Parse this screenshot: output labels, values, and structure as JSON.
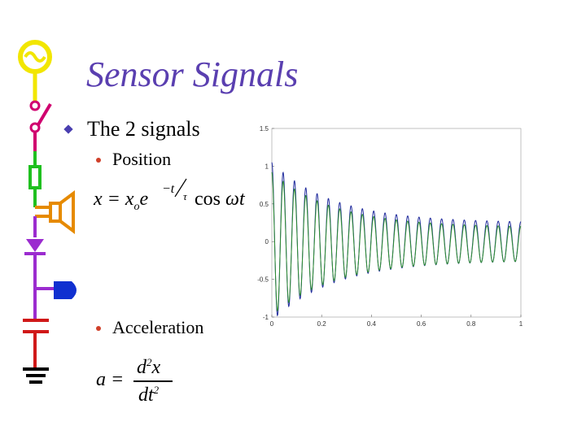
{
  "slide": {
    "title": "Sensor Signals",
    "bullet": "The 2 signals",
    "sub_bullets": {
      "position": "Position",
      "acceleration": "Acceleration"
    },
    "equations": {
      "position": {
        "lhs": "x = x",
        "sub_o": "o",
        "e": "e",
        "exponent": "−t",
        "tau": "τ",
        "cos": "cos ",
        "omega_t": "ωt"
      },
      "acceleration": {
        "lhs": "a =",
        "num": "d",
        "num_sup": "2",
        "num_var": "x",
        "den": "dt",
        "den_sup": "2"
      }
    }
  },
  "colors": {
    "title": "#5a3fb0",
    "series_blue": "#1f2a9c",
    "series_green": "#2f8f2f",
    "deco_yellow": "#f2e600",
    "deco_pink": "#d0006f",
    "deco_green": "#20c020",
    "deco_orange": "#e68a00",
    "deco_purple": "#9b2ccf",
    "deco_blue": "#1030d0",
    "deco_red": "#d01818",
    "deco_black": "#000000"
  },
  "chart_data": {
    "type": "line",
    "xlim": [
      0,
      1
    ],
    "ylim": [
      -1,
      1.5
    ],
    "xticks": [
      "0",
      "0.2",
      "0.4",
      "0.6",
      "0.8",
      "1"
    ],
    "yticks": [
      "-1",
      "-0.5",
      "0",
      "0.5",
      "1",
      "1.5"
    ],
    "series": [
      {
        "color": "#1f2a9c",
        "amplitude": 1.05,
        "tau": 0.25,
        "frequency_hz": 22,
        "floor": 0.25
      },
      {
        "color": "#2f8f2f",
        "amplitude": 0.95,
        "tau": 0.25,
        "frequency_hz": 22,
        "floor": 0.22,
        "offset": -0.03
      }
    ]
  }
}
